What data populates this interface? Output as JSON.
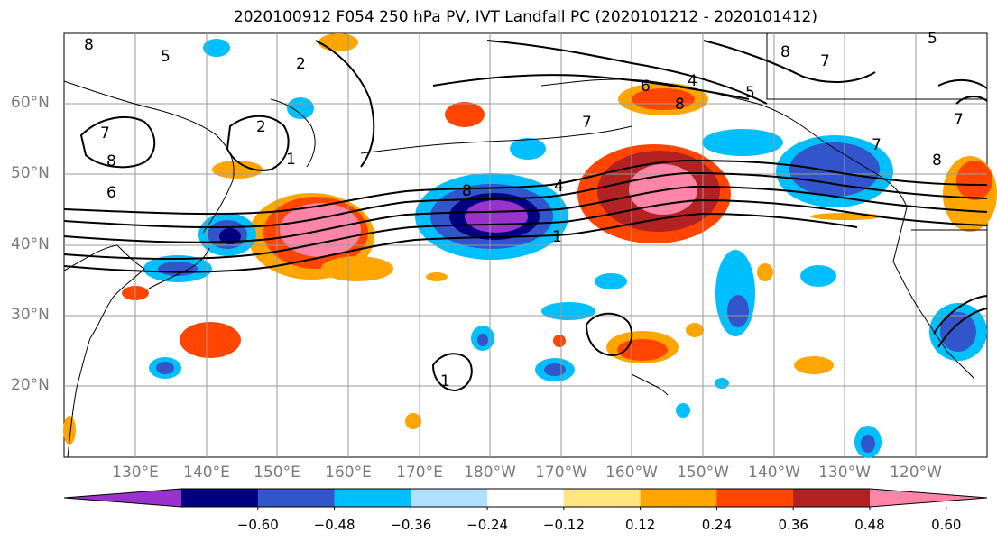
{
  "title": "2020100912 F054 250 hPa PV, IVT Landfall PC (2020101212 - 2020101412)",
  "map": {
    "lat_labels": [
      "60°N",
      "50°N",
      "40°N",
      "30°N",
      "20°N"
    ],
    "lon_labels": [
      "130°E",
      "140°E",
      "150°E",
      "160°E",
      "170°E",
      "180°W",
      "170°W",
      "160°W",
      "150°W",
      "140°W",
      "130°W",
      "120°W"
    ],
    "gridlines": true,
    "contour_labels": [
      "8",
      "5",
      "2",
      "7",
      "2",
      "8",
      "6",
      "4",
      "7",
      "6",
      "8",
      "1",
      "8",
      "4",
      "5",
      "7",
      "8",
      "7",
      "5",
      "8",
      "7",
      "1",
      "1"
    ]
  },
  "colorbar": {
    "colors": [
      "#9933cc",
      "#000080",
      "#3355cc",
      "#00bfff",
      "#b0e0ff",
      "#ffffff",
      "#ffe680",
      "#ffa500",
      "#ff4500",
      "#b22222",
      "#ff85a8"
    ],
    "ticks": [
      "−0.60",
      "−0.48",
      "−0.36",
      "−0.24",
      "−0.12",
      "0.12",
      "0.24",
      "0.36",
      "0.48",
      "0.60"
    ],
    "extend": "both"
  }
}
